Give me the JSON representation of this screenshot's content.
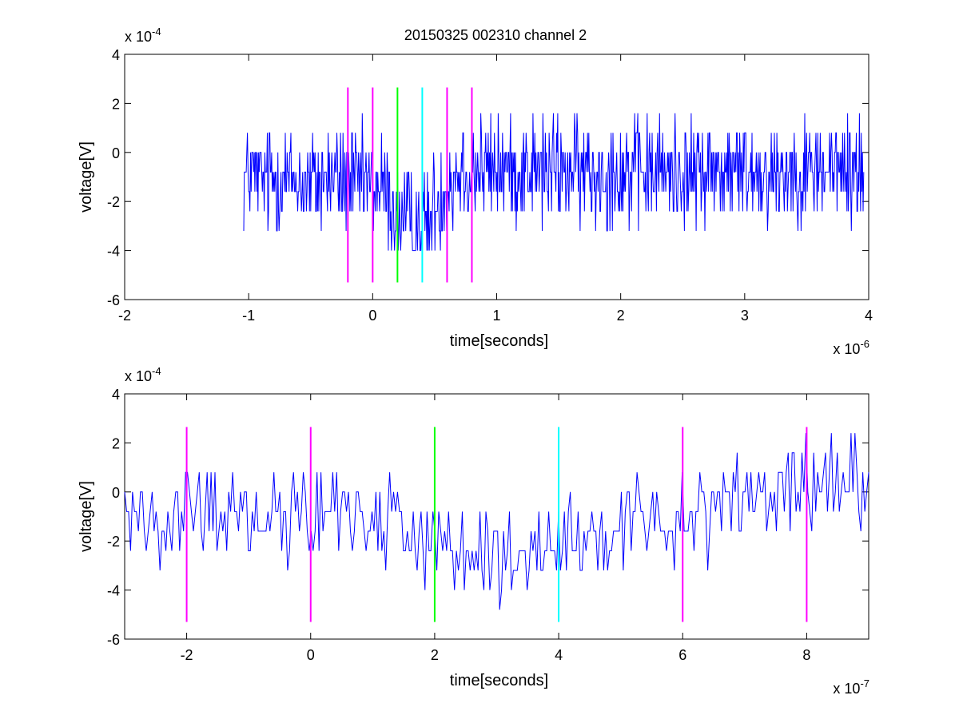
{
  "figure_title": "20150325 002310 channel 2",
  "chart_data": [
    {
      "type": "line",
      "title": "20150325 002310 channel 2",
      "xlabel": "time[seconds]",
      "ylabel": "voltage[V]",
      "x_multiplier": {
        "base": "x 10",
        "exponent": "-6"
      },
      "y_multiplier": {
        "base": "x 10",
        "exponent": "-4"
      },
      "xlim": [
        -2,
        4
      ],
      "ylim": [
        -6,
        4
      ],
      "xticks": [
        -2,
        -1,
        0,
        1,
        2,
        3,
        4
      ],
      "xtick_labels": [
        "-2",
        "-1",
        "0",
        "1",
        "2",
        "3",
        "4"
      ],
      "yticks": [
        -6,
        -4,
        -2,
        0,
        2,
        4
      ],
      "ytick_labels": [
        "-6",
        "-4",
        "-2",
        "0",
        "2",
        "4"
      ],
      "grid": false,
      "series": [
        {
          "color": "#0000ff",
          "x_range": [
            -1.04,
            3.96
          ],
          "noise_levels": [
            -4,
            -3.2,
            -2.4,
            -1.6,
            -0.8,
            0,
            0.8,
            1.6,
            2.4
          ],
          "envelope": {
            "x": [
              -1.04,
              -0.6,
              -0.2,
              0.1,
              0.2,
              0.3,
              0.45,
              0.55,
              0.7,
              1.0,
              2.0,
              3.96
            ],
            "y": [
              -1.0,
              -1.1,
              -1.2,
              -1.6,
              -2.6,
              -3.0,
              -2.8,
              -1.8,
              -0.6,
              -0.7,
              -0.8,
              -0.7
            ]
          },
          "noise_amplitude": 1.1
        }
      ],
      "vlines": [
        {
          "x": -0.2,
          "color": "#ff00ff",
          "y": [
            -5.3,
            2.65
          ]
        },
        {
          "x": 0.0,
          "color": "#ff00ff",
          "y": [
            -5.3,
            2.65
          ]
        },
        {
          "x": 0.2,
          "color": "#00ff00",
          "y": [
            -5.3,
            2.65
          ]
        },
        {
          "x": 0.4,
          "color": "#00ffff",
          "y": [
            -5.3,
            2.65
          ]
        },
        {
          "x": 0.6,
          "color": "#ff00ff",
          "y": [
            -5.3,
            2.65
          ]
        },
        {
          "x": 0.8,
          "color": "#ff00ff",
          "y": [
            -5.3,
            2.65
          ]
        }
      ]
    },
    {
      "type": "line",
      "title": "",
      "xlabel": "time[seconds]",
      "ylabel": "voltage[V]",
      "x_multiplier": {
        "base": "x 10",
        "exponent": "-7"
      },
      "y_multiplier": {
        "base": "x 10",
        "exponent": "-4"
      },
      "xlim": [
        -3,
        9
      ],
      "ylim": [
        -6,
        4
      ],
      "xticks": [
        -2,
        0,
        2,
        4,
        6,
        8
      ],
      "xtick_labels": [
        "-2",
        "0",
        "2",
        "4",
        "6",
        "8"
      ],
      "yticks": [
        -6,
        -4,
        -2,
        0,
        2,
        4
      ],
      "ytick_labels": [
        "-6",
        "-4",
        "-2",
        "0",
        "2",
        "4"
      ],
      "grid": false,
      "series": [
        {
          "color": "#0000ff",
          "x_range": [
            -3,
            9
          ],
          "noise_levels": [
            -4.8,
            -4,
            -3.2,
            -2.4,
            -1.6,
            -0.8,
            0,
            0.8,
            1.6,
            2.4
          ],
          "envelope": {
            "x": [
              -3,
              -2,
              -1,
              0,
              1,
              1.8,
              2.2,
              2.8,
              3.5,
              4.2,
              5,
              6,
              7,
              8,
              9
            ],
            "y": [
              -0.8,
              -0.9,
              -0.8,
              -0.9,
              -0.9,
              -1.5,
              -2.7,
              -3.0,
              -2.8,
              -2.4,
              -1.6,
              -0.8,
              -0.2,
              0.0,
              0.2
            ]
          },
          "noise_amplitude": 1.0
        }
      ],
      "vlines": [
        {
          "x": -2,
          "color": "#ff00ff",
          "y": [
            -5.3,
            2.65
          ]
        },
        {
          "x": 0,
          "color": "#ff00ff",
          "y": [
            -5.3,
            2.65
          ]
        },
        {
          "x": 2,
          "color": "#00ff00",
          "y": [
            -5.3,
            2.65
          ]
        },
        {
          "x": 4,
          "color": "#00ffff",
          "y": [
            -5.3,
            2.65
          ]
        },
        {
          "x": 6,
          "color": "#ff00ff",
          "y": [
            -5.3,
            2.65
          ]
        },
        {
          "x": 8,
          "color": "#ff00ff",
          "y": [
            -5.3,
            2.65
          ]
        }
      ]
    }
  ]
}
